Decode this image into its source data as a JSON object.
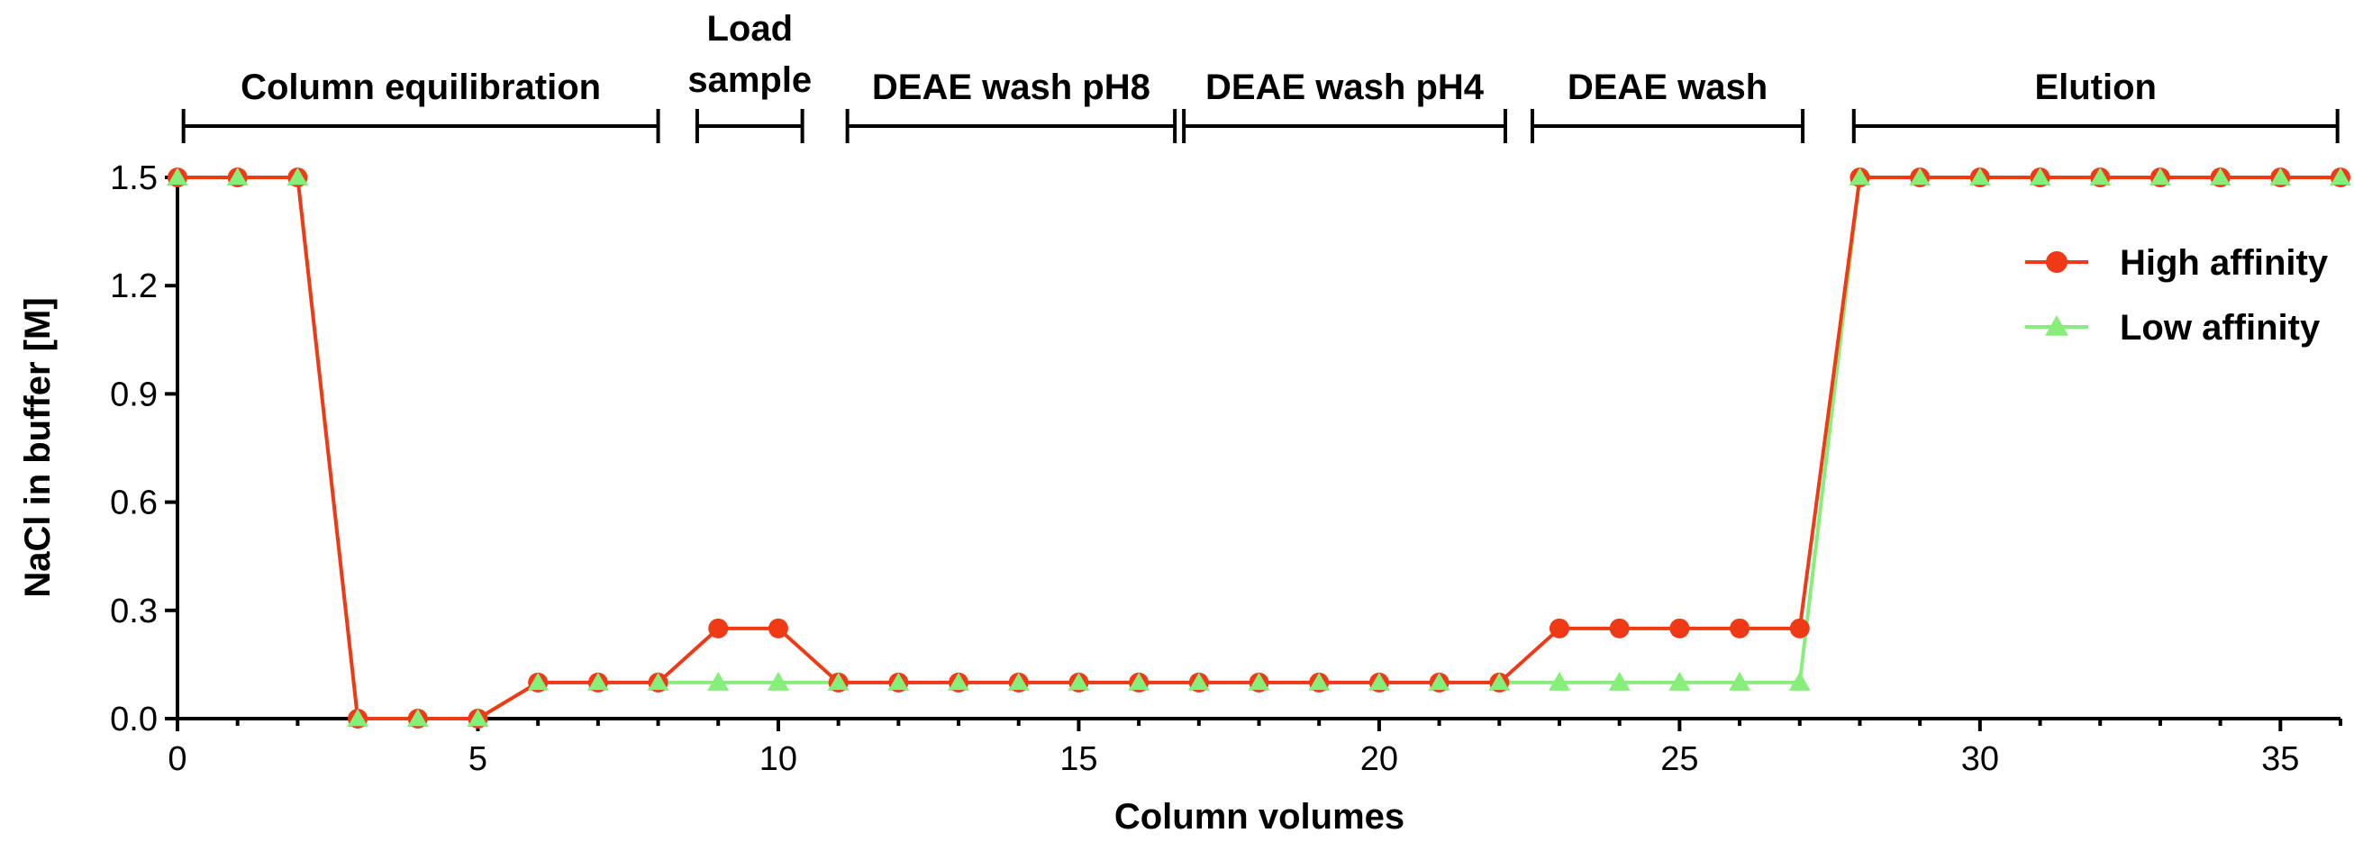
{
  "chart_data": {
    "type": "line",
    "xlabel": "Column volumes",
    "ylabel": "NaCl in buffer [M]",
    "xlim": [
      0,
      36
    ],
    "ylim": [
      0,
      1.5
    ],
    "xticks": [
      0,
      5,
      10,
      15,
      20,
      25,
      30,
      35
    ],
    "xtick_labels": [
      "0",
      "5",
      "10",
      "15",
      "20",
      "25",
      "30",
      "35"
    ],
    "yticks": [
      0.0,
      0.3,
      0.6,
      0.9,
      1.2,
      1.5
    ],
    "ytick_labels": [
      "0.0",
      "0.3",
      "0.6",
      "0.9",
      "1.2",
      "1.5"
    ],
    "grid": false,
    "legend_position": "right",
    "x": [
      0,
      1,
      2,
      3,
      4,
      5,
      6,
      7,
      8,
      9,
      10,
      11,
      12,
      13,
      14,
      15,
      16,
      17,
      18,
      19,
      20,
      21,
      22,
      23,
      24,
      25,
      26,
      27,
      28,
      29,
      30,
      31,
      32,
      33,
      34,
      35,
      36
    ],
    "series": [
      {
        "name": "High affinity",
        "color": "#f03a17",
        "marker": "circle",
        "values": [
          1.5,
          1.5,
          1.5,
          0,
          0,
          0,
          0.1,
          0.1,
          0.1,
          0.25,
          0.25,
          0.1,
          0.1,
          0.1,
          0.1,
          0.1,
          0.1,
          0.1,
          0.1,
          0.1,
          0.1,
          0.1,
          0.1,
          0.25,
          0.25,
          0.25,
          0.25,
          0.25,
          1.5,
          1.5,
          1.5,
          1.5,
          1.5,
          1.5,
          1.5,
          1.5,
          1.5
        ]
      },
      {
        "name": "Low affinity",
        "color": "#86ef7a",
        "marker": "triangle",
        "values": [
          1.5,
          1.5,
          1.5,
          0,
          0,
          0,
          0.1,
          0.1,
          0.1,
          0.1,
          0.1,
          0.1,
          0.1,
          0.1,
          0.1,
          0.1,
          0.1,
          0.1,
          0.1,
          0.1,
          0.1,
          0.1,
          0.1,
          0.1,
          0.1,
          0.1,
          0.1,
          0.1,
          1.5,
          1.5,
          1.5,
          1.5,
          1.5,
          1.5,
          1.5,
          1.5,
          1.5
        ]
      }
    ],
    "phases": [
      {
        "label": "Column equilibration",
        "lines": [
          "Column equilibration"
        ],
        "start": 0.1,
        "end": 8
      },
      {
        "label": "Load sample",
        "lines": [
          "Load",
          "sample"
        ],
        "start": 8.65,
        "end": 10.4
      },
      {
        "label": "DEAE wash pH8",
        "lines": [
          "DEAE wash pH8"
        ],
        "start": 11.15,
        "end": 16.6
      },
      {
        "label": "DEAE wash pH4",
        "lines": [
          "DEAE wash pH4"
        ],
        "start": 16.75,
        "end": 22.1
      },
      {
        "label": "DEAE wash",
        "lines": [
          "DEAE wash"
        ],
        "start": 22.55,
        "end": 27.05
      },
      {
        "label": "Elution",
        "lines": [
          "Elution"
        ],
        "start": 27.9,
        "end": 35.95
      }
    ]
  }
}
